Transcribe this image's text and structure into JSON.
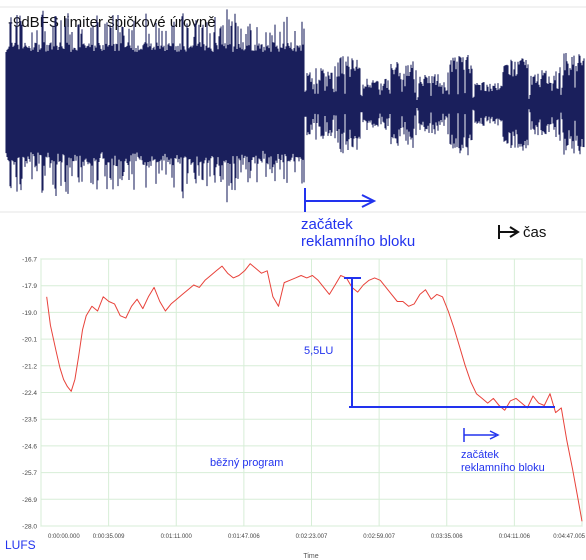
{
  "waveform": {
    "title": "-9dBFS limiter špičkové úrovně",
    "annotation_start": [
      "začátek",
      "reklamního bloku"
    ],
    "time_label": "čas",
    "color": "#1a1f5c",
    "arrow_color": "#2233ee"
  },
  "chart_data": {
    "type": "line",
    "title": "",
    "xlabel": "Time",
    "ylabel": "LUFS",
    "x_ticks": [
      "0:00:00.000",
      "0:00:35.009",
      "0:01:11.000",
      "0:01:47.006",
      "0:02:23.007",
      "0:02:59.007",
      "0:03:35.006",
      "0:04:11.006",
      "0:04:47.005"
    ],
    "y_ticks": [
      "-16.7",
      "-17.9",
      "-19.0",
      "-20.1",
      "-21.2",
      "-22.4",
      "-23.5",
      "-24.6",
      "-25.7",
      "-26.9",
      "-28.0"
    ],
    "ylim": [
      -28.0,
      -16.7
    ],
    "xlim_seconds": [
      0,
      287
    ],
    "grid": true,
    "series": [
      {
        "color": "#e8423a",
        "x": [
          3,
          5,
          8,
          10,
          12,
          14,
          16,
          18,
          20,
          22,
          24,
          27,
          30,
          33,
          36,
          39,
          42,
          45,
          48,
          51,
          54,
          57,
          60,
          63,
          66,
          69,
          72,
          75,
          78,
          81,
          84,
          87,
          90,
          93,
          96,
          99,
          102,
          105,
          108,
          111,
          114,
          117,
          120,
          123,
          126,
          129,
          132,
          135,
          138,
          141,
          144,
          147,
          150,
          153,
          156,
          159,
          162,
          165,
          168,
          171,
          174,
          177,
          180,
          183,
          186,
          189,
          192,
          195,
          198,
          201,
          204,
          207,
          210,
          213,
          216,
          219,
          222,
          225,
          228,
          231,
          234,
          237,
          240,
          243,
          246,
          249,
          252,
          255,
          258,
          261,
          264,
          267,
          270,
          273,
          276,
          279,
          282,
          285,
          287
        ],
        "y": [
          -18.3,
          -19.5,
          -20.6,
          -21.3,
          -21.8,
          -22.1,
          -22.3,
          -21.8,
          -20.8,
          -19.7,
          -19.1,
          -18.7,
          -18.9,
          -18.3,
          -18.5,
          -18.6,
          -19.1,
          -19.2,
          -18.7,
          -18.4,
          -18.8,
          -18.3,
          -17.9,
          -18.5,
          -18.9,
          -18.6,
          -18.4,
          -18.2,
          -18.0,
          -17.8,
          -17.9,
          -17.6,
          -17.4,
          -17.2,
          -17.0,
          -17.3,
          -17.5,
          -17.4,
          -17.2,
          -16.9,
          -17.1,
          -17.3,
          -17.2,
          -18.3,
          -18.7,
          -17.7,
          -17.6,
          -17.5,
          -17.4,
          -17.5,
          -17.4,
          -17.6,
          -17.9,
          -18.2,
          -17.8,
          -17.4,
          -17.5,
          -17.9,
          -18.1,
          -17.8,
          -17.6,
          -17.5,
          -17.6,
          -17.9,
          -18.2,
          -18.5,
          -18.5,
          -18.7,
          -18.6,
          -18.2,
          -18.0,
          -18.4,
          -18.2,
          -18.3,
          -18.9,
          -19.6,
          -20.4,
          -21.2,
          -21.9,
          -22.4,
          -22.6,
          -22.8,
          -22.6,
          -22.9,
          -23.1,
          -22.7,
          -22.6,
          -22.8,
          -23.0,
          -22.5,
          -22.8,
          -22.9,
          -22.4,
          -23.2,
          -23.0,
          -24.4,
          -25.6,
          -26.9,
          -27.8
        ]
      }
    ],
    "annotations": {
      "difference_label": "5,5LU",
      "program_label": "běžný program",
      "ad_start_label": [
        "začátek",
        "reklamního bloku"
      ],
      "arrow_color": "#2233ee"
    }
  }
}
